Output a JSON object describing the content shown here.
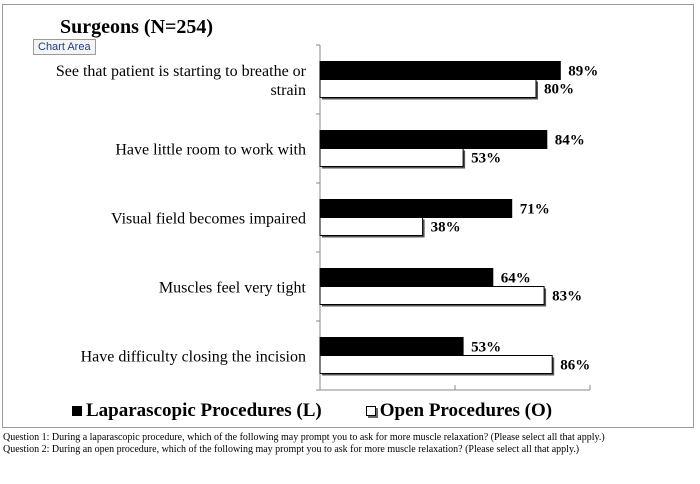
{
  "chart_data": {
    "type": "bar",
    "orientation": "horizontal",
    "title": "Surgeons (N=254)",
    "categories": [
      "See that patient is starting to breathe or strain",
      "Have little room to work with",
      "Visual field becomes impaired",
      "Muscles feel very tight",
      "Have difficulty closing the incision"
    ],
    "category_lines": [
      [
        "See that patient is starting to breathe or",
        "strain"
      ],
      [
        "Have little room to work with"
      ],
      [
        "Visual field becomes impaired"
      ],
      [
        "Muscles feel very tight"
      ],
      [
        "Have difficulty closing the incision"
      ]
    ],
    "series": [
      {
        "name": "Laparascopic Procedures (L)",
        "values": [
          89,
          84,
          71,
          64,
          53
        ],
        "labels": [
          "89%",
          "84%",
          "71%",
          "64%",
          "53%"
        ],
        "color": "#000000"
      },
      {
        "name": "Open Procedures (O)",
        "values": [
          80,
          53,
          38,
          83,
          86
        ],
        "labels": [
          "80%",
          "53%",
          "38%",
          "83%",
          "86%"
        ],
        "color": "#ffffff"
      }
    ],
    "xlim": [
      0,
      100
    ],
    "grid": false,
    "legend_position": "bottom",
    "xlabel": "",
    "ylabel": ""
  },
  "ui": {
    "chart_area_tooltip": "Chart Area"
  },
  "footnotes": [
    "Question 1: During a laparascopic procedure, which of the following may prompt you to ask for more muscle relaxation? (Please select all that apply.)",
    "Question 2: During an open procedure, which of the following may prompt you to ask for more muscle relaxation? (Please select all that apply.)"
  ]
}
